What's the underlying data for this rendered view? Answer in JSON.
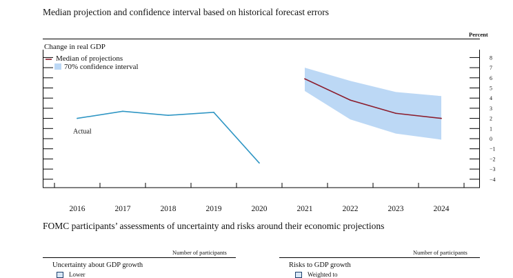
{
  "page": {
    "top_title": "Median projection and confidence interval based on historical forecast errors",
    "units_label": "Percent",
    "bottom_title": "FOMC participants’ assessments of uncertainty and risks around their economic projections"
  },
  "chart_data": {
    "type": "line",
    "title": "Change in real GDP",
    "ylabel": "Percent",
    "xlabel": "",
    "ylim": [
      -4,
      8
    ],
    "yticks": [
      -4,
      -3,
      -2,
      -1,
      0,
      1,
      2,
      3,
      4,
      5,
      6,
      7,
      8
    ],
    "categories": [
      "2016",
      "2017",
      "2018",
      "2019",
      "2020",
      "2021",
      "2022",
      "2023",
      "2024"
    ],
    "series": [
      {
        "name": "Actual",
        "color": "#2f96c4",
        "x": [
          "2016",
          "2017",
          "2018",
          "2019",
          "2020"
        ],
        "values": [
          2.0,
          2.7,
          2.3,
          2.6,
          -2.4
        ]
      },
      {
        "name": "Median of projections",
        "color": "#8b1c2c",
        "x": [
          "2021",
          "2022",
          "2023",
          "2024"
        ],
        "values": [
          5.9,
          3.8,
          2.5,
          2.0
        ]
      }
    ],
    "band": {
      "name": "70% confidence interval",
      "color": "#bcd8f5",
      "x": [
        "2021",
        "2022",
        "2023",
        "2024"
      ],
      "low": [
        4.7,
        1.9,
        0.5,
        -0.1
      ],
      "high": [
        7.0,
        5.7,
        4.6,
        4.2
      ]
    },
    "annotations": [
      {
        "text": "Actual",
        "year": "2016",
        "value": 0.7
      }
    ]
  },
  "panels": {
    "left": {
      "units": "Number of participants",
      "title": "Uncertainty about GDP growth",
      "legend_item": "Lower"
    },
    "right": {
      "units": "Number of participants",
      "title": "Risks to GDP growth",
      "legend_item": "Weighted to"
    }
  },
  "colors": {
    "actual": "#2f96c4",
    "median": "#8b1c2c",
    "band": "#bcd8f5"
  }
}
